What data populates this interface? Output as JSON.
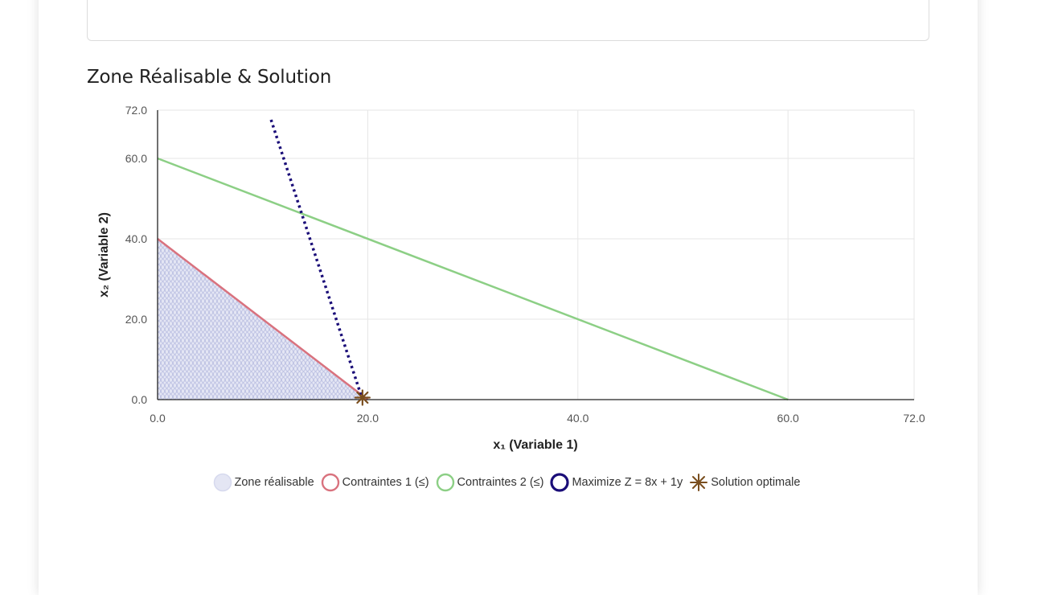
{
  "section": {
    "title": "Zone Réalisable & Solution"
  },
  "colors": {
    "feasible_fill": "#c9cce6",
    "constraint1": "#d9727e",
    "constraint2": "#8ccf85",
    "objective": "#1a0d78",
    "optimal": "#7a4e1e",
    "grid": "#e6e6e6",
    "axis": "#222222"
  },
  "chart_data": {
    "type": "scatter",
    "xlabel": "x₁ (Variable 1)",
    "ylabel": "x₂ (Variable 2)",
    "xlim": [
      0,
      72
    ],
    "ylim": [
      0,
      72
    ],
    "x_ticks": [
      "0.0",
      "20.0",
      "40.0",
      "60.0",
      "72.0"
    ],
    "y_ticks": [
      "0.0",
      "20.0",
      "40.0",
      "60.0",
      "72.0"
    ],
    "x_tick_values": [
      0,
      20,
      40,
      60,
      72
    ],
    "y_tick_values": [
      0,
      20,
      40,
      60,
      72
    ],
    "grid": true,
    "legend_position": "bottom",
    "series": [
      {
        "name": "Zone réalisable",
        "kind": "area",
        "points": [
          [
            0,
            0
          ],
          [
            0,
            40
          ],
          [
            20,
            0
          ]
        ]
      },
      {
        "name": "Contraintes 1 (≤)",
        "kind": "line",
        "points": [
          [
            0,
            40
          ],
          [
            20,
            0
          ]
        ]
      },
      {
        "name": "Contraintes 2 (≤)",
        "kind": "line",
        "points": [
          [
            0,
            60
          ],
          [
            60,
            0
          ]
        ]
      },
      {
        "name": "Maximize Z = 8x + 1y",
        "kind": "dotted-line",
        "points": [
          [
            10.8,
            69.6
          ],
          [
            19.5,
            0
          ]
        ]
      },
      {
        "name": "Solution optimale",
        "kind": "marker",
        "points": [
          [
            19.5,
            0.5
          ]
        ]
      }
    ]
  }
}
